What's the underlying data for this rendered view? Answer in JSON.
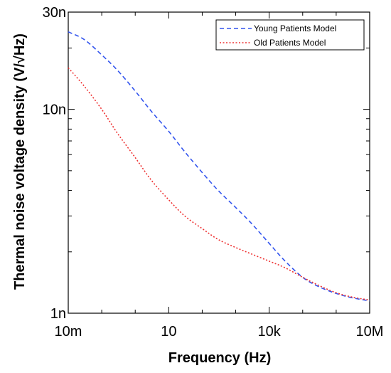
{
  "chart_data": {
    "type": "line",
    "xlabel": "Frequency (Hz)",
    "ylabel": "Thermal noise voltage density (V/√Hz)",
    "x_scale": "log",
    "y_scale": "log",
    "xlim": [
      0.01,
      10000000
    ],
    "ylim": [
      1e-09,
      3e-08
    ],
    "x_ticks": [
      {
        "value": 0.01,
        "label": "10m"
      },
      {
        "value": 10,
        "label": "10"
      },
      {
        "value": 10000,
        "label": "10k"
      },
      {
        "value": 10000000,
        "label": "10M"
      }
    ],
    "y_ticks": [
      {
        "value": 1e-09,
        "label": "1n"
      },
      {
        "value": 1e-08,
        "label": "10n"
      },
      {
        "value": 3e-08,
        "label": "30n"
      }
    ],
    "grid": false,
    "legend_position": "top-right",
    "series": [
      {
        "name": "Young Patients Model",
        "color": "#3355ee",
        "dash": "dashed",
        "points": [
          [
            0.01,
            2.4e-08
          ],
          [
            0.03,
            2.2e-08
          ],
          [
            0.1,
            1.85e-08
          ],
          [
            0.3,
            1.55e-08
          ],
          [
            1,
            1.23e-08
          ],
          [
            3,
            9.8e-09
          ],
          [
            10,
            7.8e-09
          ],
          [
            30,
            6.2e-09
          ],
          [
            100,
            4.9e-09
          ],
          [
            300,
            4e-09
          ],
          [
            1000,
            3.3e-09
          ],
          [
            3000,
            2.75e-09
          ],
          [
            10000,
            2.2e-09
          ],
          [
            30000,
            1.8e-09
          ],
          [
            100000,
            1.5e-09
          ],
          [
            300000,
            1.35e-09
          ],
          [
            1000000,
            1.25e-09
          ],
          [
            3000000,
            1.19e-09
          ],
          [
            10000000,
            1.15e-09
          ]
        ]
      },
      {
        "name": "Old Patients Model",
        "color": "#ee3333",
        "dash": "dotted",
        "points": [
          [
            0.01,
            1.6e-08
          ],
          [
            0.03,
            1.3e-08
          ],
          [
            0.1,
            1e-08
          ],
          [
            0.3,
            7.6e-09
          ],
          [
            1,
            5.8e-09
          ],
          [
            3,
            4.5e-09
          ],
          [
            10,
            3.6e-09
          ],
          [
            30,
            3e-09
          ],
          [
            100,
            2.6e-09
          ],
          [
            300,
            2.3e-09
          ],
          [
            1000,
            2.1e-09
          ],
          [
            3000,
            1.95e-09
          ],
          [
            10000,
            1.8e-09
          ],
          [
            30000,
            1.67e-09
          ],
          [
            100000,
            1.5e-09
          ],
          [
            300000,
            1.37e-09
          ],
          [
            1000000,
            1.26e-09
          ],
          [
            3000000,
            1.2e-09
          ],
          [
            10000000,
            1.16e-09
          ]
        ]
      }
    ]
  }
}
